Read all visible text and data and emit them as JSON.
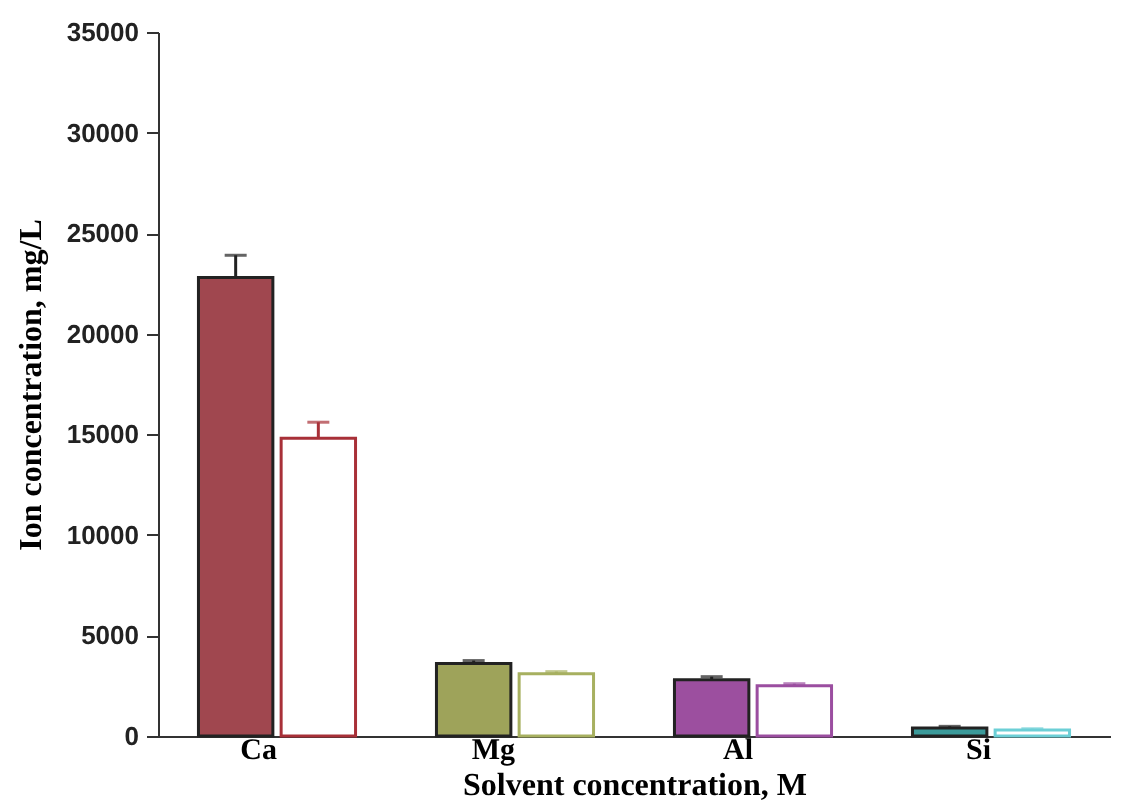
{
  "chart_data": {
    "type": "bar",
    "xlabel": "Solvent concentration, M",
    "ylabel": "Ion concentration, mg/L",
    "categories": [
      "Ca",
      "Mg",
      "Al",
      "Si"
    ],
    "ylim": [
      0,
      35000
    ],
    "yticks": [
      0,
      5000,
      10000,
      15000,
      20000,
      25000,
      30000,
      35000
    ],
    "grid": false,
    "series": [
      {
        "colors": [
          "#a0474f",
          "#9ea35a",
          "#9c4f9f",
          "#3b9a9a"
        ],
        "values": [
          22800,
          3600,
          2800,
          400
        ],
        "errors": [
          1100,
          150,
          150,
          80
        ]
      },
      {
        "colors": [
          "#a83038",
          "#a7b060",
          "#9b4ea0",
          "#6ccfd6"
        ],
        "values": [
          14800,
          3100,
          2500,
          300
        ],
        "errors": [
          800,
          100,
          100,
          60
        ]
      }
    ]
  }
}
